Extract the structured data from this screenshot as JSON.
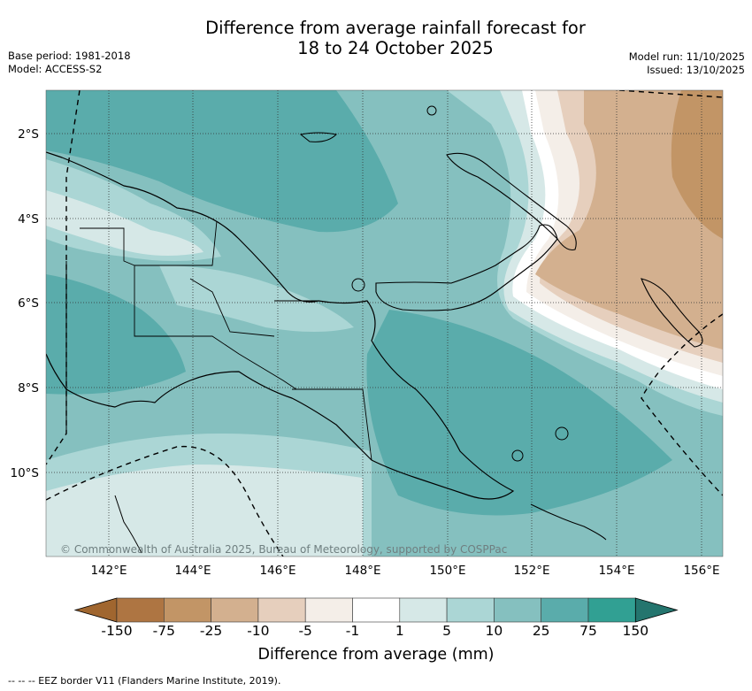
{
  "title": {
    "line1": "Difference from average rainfall forecast for",
    "line2": "18 to 24 October 2025"
  },
  "meta_left": {
    "base_period": "Base period: 1981-2018",
    "model": "Model: ACCESS-S2"
  },
  "meta_right": {
    "model_run": "Model run: 11/10/2025",
    "issued": "Issued: 13/10/2025"
  },
  "map": {
    "lat_labels": [
      "2°S",
      "4°S",
      "6°S",
      "8°S",
      "10°S"
    ],
    "lon_labels": [
      "142°E",
      "144°E",
      "146°E",
      "148°E",
      "150°E",
      "152°E",
      "154°E",
      "156°E"
    ],
    "copyright": "© Commonwealth of Australia 2025, Bureau of Meteorology, supported by COSPPac"
  },
  "colorbar": {
    "title": "Difference from average (mm)",
    "tick_labels": [
      "-150",
      "-75",
      "-25",
      "-10",
      "-5",
      "-1",
      "1",
      "5",
      "10",
      "25",
      "75",
      "150"
    ],
    "colors": [
      "#ae7542",
      "#c29566",
      "#d3b08f",
      "#e6cfbd",
      "#f4eee8",
      "#ffffff",
      "#d6e8e7",
      "#abd6d5",
      "#85c0bf",
      "#5aacab",
      "#31a093"
    ],
    "under_color": "#a0662f",
    "over_color": "#24756e"
  },
  "footer": "-- -- -- EEZ border V11 (Flanders Marine Institute, 2019)."
}
